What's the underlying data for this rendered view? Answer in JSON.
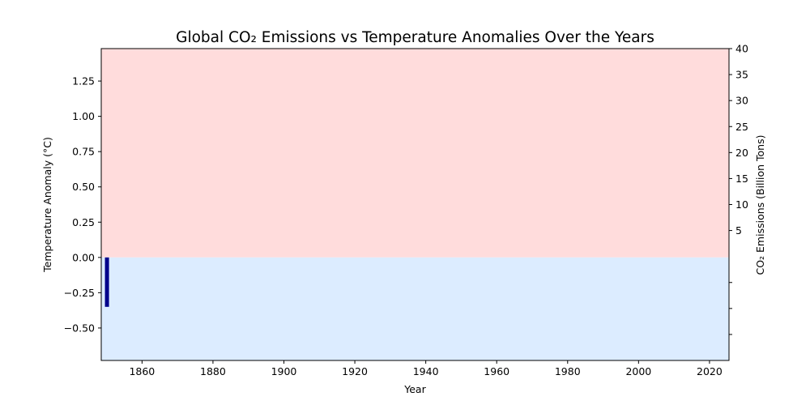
{
  "chart_data": {
    "type": "bar",
    "title": "Global CO₂ Emissions vs Temperature Anomalies Over the Years",
    "xlabel": "Year",
    "ylabel": "Temperature Anomaly (°C)",
    "ylabel_right": "CO₂ Emissions (Billion Tons)",
    "xlim": [
      1848.5,
      2025.5
    ],
    "ylim": [
      -0.73,
      1.48
    ],
    "ylim_right": [
      -20,
      40
    ],
    "x_ticks": [
      1860,
      1880,
      1900,
      1920,
      1940,
      1960,
      1980,
      2000,
      2020
    ],
    "y_ticks": [
      -0.5,
      -0.25,
      0.0,
      0.25,
      0.5,
      0.75,
      1.0,
      1.25
    ],
    "y_tick_labels": [
      "−0.50",
      "−0.25",
      "0.00",
      "0.25",
      "0.50",
      "0.75",
      "1.00",
      "1.25"
    ],
    "y_right_ticks": [
      5,
      10,
      15,
      20,
      25,
      30,
      35,
      40
    ],
    "y_right_unlabeled_ticks": [
      -5,
      -10,
      -15
    ],
    "series": [
      {
        "x": [
          1850
        ],
        "values": [
          -0.35
        ],
        "color": "#00008b"
      }
    ],
    "regions": {
      "positive_color": "#ffdcdc",
      "negative_color": "#dcecff"
    },
    "grid": false
  }
}
